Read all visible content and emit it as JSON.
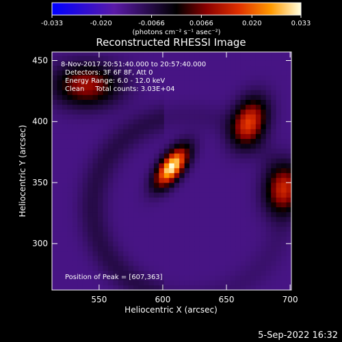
{
  "chart_data": {
    "type": "heatmap",
    "title": "Reconstructed RHESSI Image",
    "xlabel": "Heliocentric X (arcsec)",
    "ylabel": "Heliocentric Y (arcsec)",
    "xlim": [
      513,
      701
    ],
    "ylim": [
      262,
      457
    ],
    "x_ticks": [
      550,
      600,
      650,
      700
    ],
    "y_ticks": [
      300,
      350,
      400,
      450
    ],
    "x_tick_labels": [
      "550",
      "600",
      "650",
      "700"
    ],
    "y_tick_labels": [
      "300",
      "350",
      "400",
      "450"
    ],
    "colormap": "hot-on-blue",
    "colorbar": {
      "range": [
        -0.033,
        0.033
      ],
      "tick_labels": [
        "-0.033",
        "-0.020",
        "-0.0066",
        "0.0066",
        "0.020",
        "0.033"
      ],
      "tick_values": [
        -0.033,
        -0.02,
        -0.0066,
        0.0066,
        0.02,
        0.033
      ],
      "unit_label": "(photons cm⁻² s⁻¹ asec⁻²)"
    },
    "annotations": [
      "8-Nov-2017 20:51:40.000 to 20:57:40.000",
      "Detectors: 3F 6F 8F, Att 0",
      "Energy Range: 6.0 - 12.0 keV",
      "Clean     Total counts: 3.03E+04"
    ],
    "peak_label": "Position of Peak = [607,363]",
    "peak_position": [
      607,
      363
    ],
    "sources": [
      {
        "x": 607,
        "y": 363,
        "amplitude": 0.033,
        "sigma_major": 13,
        "sigma_minor": 6,
        "angle_deg": 55
      },
      {
        "x": 668,
        "y": 400,
        "amplitude": 0.016,
        "sigma_major": 14,
        "sigma_minor": 9,
        "angle_deg": 70
      },
      {
        "x": 695,
        "y": 345,
        "amplitude": 0.012,
        "sigma_major": 14,
        "sigma_minor": 10,
        "angle_deg": 80
      },
      {
        "x": 540,
        "y": 430,
        "amplitude": 0.01,
        "sigma_major": 18,
        "sigma_minor": 12,
        "angle_deg": 0
      }
    ],
    "background_level": -0.013
  },
  "footer": {
    "timestamp": "5-Sep-2022 16:32"
  }
}
